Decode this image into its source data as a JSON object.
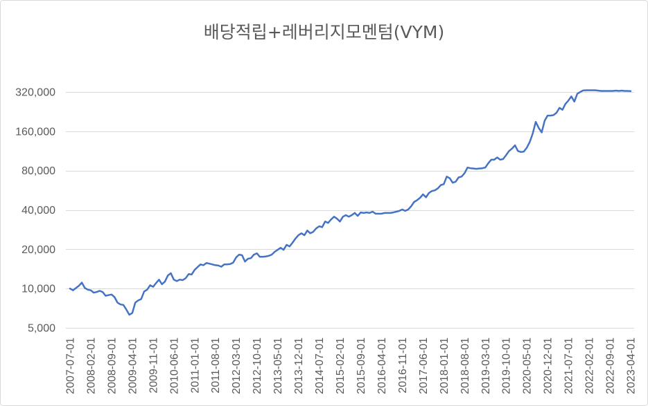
{
  "colors": {
    "line": "#4472C4",
    "grid": "#D9D9D9",
    "text": "#595959",
    "border": "#D9D9D9"
  },
  "chart_data": {
    "type": "line",
    "title": "배당적립+레버리지모멘텀(VYM)",
    "xlabel": "",
    "ylabel": "",
    "yscale": "log",
    "log_base": 2,
    "ylim": [
      5000,
      320000
    ],
    "grid": "horizontal",
    "legend": "none",
    "yticks": [
      5000,
      10000,
      20000,
      40000,
      80000,
      160000,
      320000
    ],
    "ytick_labels": [
      "5,000",
      "10,000",
      "20,000",
      "40,000",
      "80,000",
      "160,000",
      "320,000"
    ],
    "xticks": [
      "2007-07-01",
      "2008-02-01",
      "2008-09-01",
      "2009-04-01",
      "2009-11-01",
      "2010-06-01",
      "2011-01-01",
      "2011-08-01",
      "2012-03-01",
      "2012-10-01",
      "2013-05-01",
      "2013-12-01",
      "2014-07-01",
      "2015-02-01",
      "2015-09-01",
      "2016-04-01",
      "2016-11-01",
      "2017-06-01",
      "2018-01-01",
      "2018-08-01",
      "2019-03-01",
      "2019-10-01",
      "2020-05-01",
      "2020-12-01",
      "2021-07-01",
      "2022-02-01",
      "2022-09-01",
      "2023-04-01"
    ],
    "x": [
      "2007-07-01",
      "2007-08-01",
      "2007-09-01",
      "2007-10-01",
      "2007-11-01",
      "2007-12-01",
      "2008-01-01",
      "2008-02-01",
      "2008-03-01",
      "2008-04-01",
      "2008-05-01",
      "2008-06-01",
      "2008-07-01",
      "2008-08-01",
      "2008-09-01",
      "2008-10-01",
      "2008-11-01",
      "2008-12-01",
      "2009-01-01",
      "2009-02-01",
      "2009-03-01",
      "2009-04-01",
      "2009-05-01",
      "2009-06-01",
      "2009-07-01",
      "2009-08-01",
      "2009-09-01",
      "2009-10-01",
      "2009-11-01",
      "2009-12-01",
      "2010-01-01",
      "2010-02-01",
      "2010-03-01",
      "2010-04-01",
      "2010-05-01",
      "2010-06-01",
      "2010-07-01",
      "2010-08-01",
      "2010-09-01",
      "2010-10-01",
      "2010-11-01",
      "2010-12-01",
      "2011-01-01",
      "2011-02-01",
      "2011-03-01",
      "2011-04-01",
      "2011-05-01",
      "2011-06-01",
      "2011-07-01",
      "2011-08-01",
      "2011-09-01",
      "2011-10-01",
      "2011-11-01",
      "2011-12-01",
      "2012-01-01",
      "2012-02-01",
      "2012-03-01",
      "2012-04-01",
      "2012-05-01",
      "2012-06-01",
      "2012-07-01",
      "2012-08-01",
      "2012-09-01",
      "2012-10-01",
      "2012-11-01",
      "2012-12-01",
      "2013-01-01",
      "2013-02-01",
      "2013-03-01",
      "2013-04-01",
      "2013-05-01",
      "2013-06-01",
      "2013-07-01",
      "2013-08-01",
      "2013-09-01",
      "2013-10-01",
      "2013-11-01",
      "2013-12-01",
      "2014-01-01",
      "2014-02-01",
      "2014-03-01",
      "2014-04-01",
      "2014-05-01",
      "2014-06-01",
      "2014-07-01",
      "2014-08-01",
      "2014-09-01",
      "2014-10-01",
      "2014-11-01",
      "2014-12-01",
      "2015-01-01",
      "2015-02-01",
      "2015-03-01",
      "2015-04-01",
      "2015-05-01",
      "2015-06-01",
      "2015-07-01",
      "2015-08-01",
      "2015-09-01",
      "2015-10-01",
      "2015-11-01",
      "2015-12-01",
      "2016-01-01",
      "2016-02-01",
      "2016-03-01",
      "2016-04-01",
      "2016-05-01",
      "2016-06-01",
      "2016-07-01",
      "2016-08-01",
      "2016-09-01",
      "2016-10-01",
      "2016-11-01",
      "2016-12-01",
      "2017-01-01",
      "2017-02-01",
      "2017-03-01",
      "2017-04-01",
      "2017-05-01",
      "2017-06-01",
      "2017-07-01",
      "2017-08-01",
      "2017-09-01",
      "2017-10-01",
      "2017-11-01",
      "2017-12-01",
      "2018-01-01",
      "2018-02-01",
      "2018-03-01",
      "2018-04-01",
      "2018-05-01",
      "2018-06-01",
      "2018-07-01",
      "2018-08-01",
      "2018-09-01",
      "2018-10-01",
      "2018-11-01",
      "2018-12-01",
      "2019-01-01",
      "2019-02-01",
      "2019-03-01",
      "2019-04-01",
      "2019-05-01",
      "2019-06-01",
      "2019-07-01",
      "2019-08-01",
      "2019-09-01",
      "2019-10-01",
      "2019-11-01",
      "2019-12-01",
      "2020-01-01",
      "2020-02-01",
      "2020-03-01",
      "2020-04-01",
      "2020-05-01",
      "2020-06-01",
      "2020-07-01",
      "2020-08-01",
      "2020-09-01",
      "2020-10-01",
      "2020-11-01",
      "2020-12-01",
      "2021-01-01",
      "2021-02-01",
      "2021-03-01",
      "2021-04-01",
      "2021-05-01",
      "2021-06-01",
      "2021-07-01",
      "2021-08-01",
      "2021-09-01",
      "2021-10-01",
      "2021-11-01",
      "2021-12-01",
      "2022-01-01",
      "2022-02-01",
      "2022-03-01",
      "2022-04-01",
      "2022-05-01",
      "2022-06-01",
      "2022-07-01",
      "2022-08-01",
      "2022-09-01",
      "2022-10-01",
      "2022-11-01",
      "2022-12-01",
      "2023-01-01",
      "2023-02-01",
      "2023-03-01",
      "2023-04-01"
    ],
    "y": [
      10000,
      9700,
      10100,
      10500,
      11100,
      10100,
      9800,
      9700,
      9300,
      9400,
      9600,
      9400,
      8800,
      8900,
      9000,
      8600,
      7800,
      7550,
      7500,
      6900,
      6300,
      6500,
      7800,
      8100,
      8300,
      9500,
      9800,
      10600,
      10300,
      11000,
      11700,
      10800,
      11300,
      12600,
      13100,
      11700,
      11400,
      11700,
      11600,
      12000,
      12900,
      12800,
      13900,
      14600,
      15300,
      15100,
      15700,
      15500,
      15300,
      15100,
      15000,
      14700,
      15300,
      15300,
      15400,
      15800,
      17300,
      18200,
      18000,
      16100,
      16900,
      17100,
      18200,
      18600,
      17500,
      17500,
      17600,
      17800,
      18200,
      19100,
      19800,
      20500,
      19800,
      21600,
      21000,
      22400,
      24100,
      25600,
      26500,
      25600,
      27800,
      26500,
      27200,
      28900,
      30000,
      29500,
      32600,
      31800,
      33800,
      35500,
      34300,
      32600,
      35500,
      36500,
      35500,
      36500,
      37900,
      36000,
      38300,
      37900,
      38300,
      37900,
      38800,
      37400,
      37400,
      37400,
      37900,
      37900,
      37900,
      38300,
      38800,
      39300,
      40300,
      39300,
      40300,
      42600,
      46000,
      47500,
      49500,
      52600,
      50000,
      53900,
      55800,
      56500,
      58500,
      62000,
      63000,
      72000,
      70000,
      64600,
      65800,
      71000,
      72000,
      76400,
      84500,
      83500,
      83000,
      82500,
      83000,
      83500,
      84500,
      91000,
      97000,
      97000,
      101000,
      97000,
      98000,
      105000,
      113000,
      118000,
      125000,
      113000,
      111000,
      112000,
      120000,
      133000,
      154000,
      189000,
      170000,
      157000,
      193000,
      211000,
      211000,
      213000,
      222000,
      242000,
      234000,
      259000,
      275000,
      296000,
      270000,
      310000,
      320000,
      329000,
      330000,
      330000,
      330000,
      330000,
      328000,
      326000,
      326000,
      326000,
      326000,
      326000,
      328000,
      326000,
      328000,
      326000,
      326000,
      325000
    ]
  }
}
